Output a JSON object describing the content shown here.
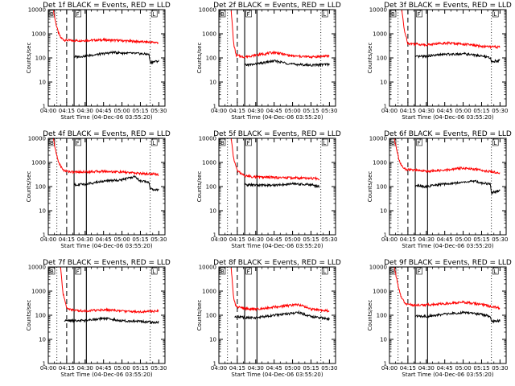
{
  "chart_data": [
    {
      "type": "line",
      "title": "Det 1f BLACK = Events, RED = LLD",
      "xlabel": "Start Time (04-Dec-06 03:55:20)",
      "ylabel": "Counts/sec",
      "yscale": "log",
      "ylim": [
        1,
        10000
      ],
      "xlim": [
        "04:00",
        "05:35"
      ],
      "xticks": [
        "04:00",
        "04:15",
        "04:30",
        "04:45",
        "05:00",
        "05:15",
        "05:30"
      ],
      "yticks": [
        "1",
        "10",
        "100",
        "1000",
        "10000"
      ],
      "markers": [
        {
          "label": "B",
          "time": "03:55"
        },
        {
          "label": "F",
          "time": "04:22"
        },
        {
          "label": "L",
          "time": "05:24"
        }
      ],
      "vlines": [
        {
          "time": "04:21",
          "style": "solid"
        },
        {
          "time": "04:31",
          "style": "solid"
        },
        {
          "time": "04:15",
          "style": "dashed"
        },
        {
          "time": "04:07",
          "style": "dotted"
        },
        {
          "time": "05:23",
          "style": "dotted"
        }
      ],
      "series": [
        {
          "name": "LLD",
          "color": "#ff0000",
          "x": [
            "04:04",
            "04:06",
            "04:08",
            "04:10",
            "04:13",
            "04:20",
            "04:30",
            "04:45",
            "05:00",
            "05:15",
            "05:30"
          ],
          "y": [
            10000,
            3000,
            1200,
            700,
            550,
            520,
            530,
            560,
            520,
            470,
            430
          ]
        },
        {
          "name": "Events",
          "color": "#000000",
          "x": [
            "04:21",
            "04:30",
            "04:45",
            "04:53",
            "05:00",
            "05:15",
            "05:22",
            "05:23",
            "05:30"
          ],
          "y": [
            110,
            120,
            150,
            170,
            160,
            150,
            140,
            65,
            75
          ]
        }
      ]
    },
    {
      "type": "line",
      "title": "Det 2f BLACK = Events, RED = LLD",
      "xlabel": "Start Time (04-Dec-06 03:55:20)",
      "ylabel": "Counts/sec",
      "yscale": "log",
      "ylim": [
        1,
        10000
      ],
      "xlim": [
        "04:00",
        "05:35"
      ],
      "xticks": [
        "04:00",
        "04:15",
        "04:30",
        "04:45",
        "05:00",
        "05:15",
        "05:30"
      ],
      "yticks": [
        "1",
        "10",
        "100",
        "1000",
        "10000"
      ],
      "markers": [
        {
          "label": "B",
          "time": "03:55"
        },
        {
          "label": "F",
          "time": "04:22"
        },
        {
          "label": "L",
          "time": "05:24"
        }
      ],
      "vlines": [
        {
          "time": "04:21",
          "style": "solid"
        },
        {
          "time": "04:31",
          "style": "solid"
        },
        {
          "time": "04:15",
          "style": "dashed"
        },
        {
          "time": "04:07",
          "style": "dotted"
        },
        {
          "time": "05:23",
          "style": "dotted"
        }
      ],
      "series": [
        {
          "name": "LLD",
          "color": "#ff0000",
          "x": [
            "04:10",
            "04:12",
            "04:14",
            "04:20",
            "04:30",
            "04:45",
            "05:00",
            "05:15",
            "05:30"
          ],
          "y": [
            10000,
            400,
            130,
            110,
            130,
            170,
            120,
            110,
            120
          ]
        },
        {
          "name": "Events",
          "color": "#000000",
          "x": [
            "04:21",
            "04:30",
            "04:45",
            "05:00",
            "05:15",
            "05:30"
          ],
          "y": [
            50,
            55,
            75,
            55,
            50,
            55
          ]
        }
      ]
    },
    {
      "type": "line",
      "title": "Det 3f BLACK = Events, RED = LLD",
      "xlabel": "Start Time (04-Dec-06 03:55:20)",
      "ylabel": "Counts/sec",
      "yscale": "log",
      "ylim": [
        1,
        10000
      ],
      "xlim": [
        "04:00",
        "05:35"
      ],
      "xticks": [
        "04:00",
        "04:15",
        "04:30",
        "04:45",
        "05:00",
        "05:15",
        "05:30"
      ],
      "yticks": [
        "1",
        "10",
        "100",
        "1000",
        "10000"
      ],
      "markers": [
        {
          "label": "B",
          "time": "03:55"
        },
        {
          "label": "F",
          "time": "04:22"
        },
        {
          "label": "L",
          "time": "05:24"
        }
      ],
      "vlines": [
        {
          "time": "04:21",
          "style": "solid"
        },
        {
          "time": "04:31",
          "style": "solid"
        },
        {
          "time": "04:15",
          "style": "dashed"
        },
        {
          "time": "04:07",
          "style": "dotted"
        },
        {
          "time": "05:23",
          "style": "dotted"
        }
      ],
      "series": [
        {
          "name": "LLD",
          "color": "#ff0000",
          "x": [
            "04:10",
            "04:12",
            "04:15",
            "04:21",
            "04:30",
            "04:45",
            "05:00",
            "05:15",
            "05:30"
          ],
          "y": [
            10000,
            1500,
            400,
            380,
            350,
            420,
            380,
            300,
            280
          ]
        },
        {
          "name": "Events",
          "color": "#000000",
          "x": [
            "04:21",
            "04:30",
            "04:45",
            "05:00",
            "05:15",
            "05:22",
            "05:23",
            "05:30"
          ],
          "y": [
            110,
            120,
            140,
            150,
            120,
            100,
            70,
            80
          ]
        }
      ]
    },
    {
      "type": "line",
      "title": "Det 4f BLACK = Events, RED = LLD",
      "xlabel": "Start Time (04-Dec-06 03:55:20)",
      "ylabel": "Counts/sec",
      "yscale": "log",
      "ylim": [
        1,
        10000
      ],
      "xlim": [
        "04:00",
        "05:35"
      ],
      "xticks": [
        "04:00",
        "04:15",
        "04:30",
        "04:45",
        "05:00",
        "05:15",
        "05:30"
      ],
      "yticks": [
        "1",
        "10",
        "100",
        "1000",
        "10000"
      ],
      "markers": [
        {
          "label": "B",
          "time": "03:55"
        },
        {
          "label": "F",
          "time": "04:22"
        },
        {
          "label": "L",
          "time": "05:24"
        }
      ],
      "vlines": [
        {
          "time": "04:21",
          "style": "solid"
        },
        {
          "time": "04:31",
          "style": "solid"
        },
        {
          "time": "04:15",
          "style": "dashed"
        },
        {
          "time": "04:07",
          "style": "dotted"
        },
        {
          "time": "05:23",
          "style": "dotted"
        }
      ],
      "series": [
        {
          "name": "LLD",
          "color": "#ff0000",
          "x": [
            "04:04",
            "04:06",
            "04:08",
            "04:10",
            "04:13",
            "04:20",
            "04:30",
            "04:45",
            "05:00",
            "05:15",
            "05:30"
          ],
          "y": [
            10000,
            3000,
            1200,
            700,
            450,
            400,
            410,
            430,
            400,
            350,
            320
          ]
        },
        {
          "name": "Events",
          "color": "#000000",
          "x": [
            "04:21",
            "04:30",
            "04:45",
            "05:00",
            "05:10",
            "05:15",
            "05:22",
            "05:23",
            "05:30"
          ],
          "y": [
            120,
            125,
            170,
            190,
            260,
            170,
            150,
            80,
            75
          ]
        }
      ]
    },
    {
      "type": "line",
      "title": "Det 5f BLACK = Events, RED = LLD",
      "xlabel": "Start Time (04-Dec-06 03:55:20)",
      "ylabel": "Counts/sec",
      "yscale": "log",
      "ylim": [
        1,
        10000
      ],
      "xlim": [
        "04:00",
        "05:35"
      ],
      "xticks": [
        "04:00",
        "04:15",
        "04:30",
        "04:45",
        "05:00",
        "05:15",
        "05:30"
      ],
      "yticks": [
        "1",
        "10",
        "100",
        "1000",
        "10000"
      ],
      "markers": [
        {
          "label": "B",
          "time": "03:55"
        },
        {
          "label": "F",
          "time": "04:22"
        },
        {
          "label": "L",
          "time": "05:24"
        }
      ],
      "vlines": [
        {
          "time": "04:21",
          "style": "solid"
        },
        {
          "time": "04:31",
          "style": "solid"
        },
        {
          "time": "04:15",
          "style": "dashed"
        },
        {
          "time": "04:07",
          "style": "dotted"
        },
        {
          "time": "05:23",
          "style": "dotted"
        }
      ],
      "series": [
        {
          "name": "LLD",
          "color": "#ff0000",
          "x": [
            "04:10",
            "04:12",
            "04:15",
            "04:21",
            "04:30",
            "04:45",
            "05:00",
            "05:15",
            "05:22"
          ],
          "y": [
            10000,
            1500,
            450,
            280,
            250,
            240,
            230,
            220,
            210
          ]
        },
        {
          "name": "Events",
          "color": "#000000",
          "x": [
            "04:21",
            "04:30",
            "04:45",
            "05:00",
            "05:15",
            "05:22"
          ],
          "y": [
            120,
            115,
            115,
            130,
            120,
            100
          ]
        }
      ]
    },
    {
      "type": "line",
      "title": "Det 6f BLACK = Events, RED = LLD",
      "xlabel": "Start Time (04-Dec-06 03:55:20)",
      "ylabel": "Counts/sec",
      "yscale": "log",
      "ylim": [
        1,
        10000
      ],
      "xlim": [
        "04:00",
        "05:35"
      ],
      "xticks": [
        "04:00",
        "04:15",
        "04:30",
        "04:45",
        "05:00",
        "05:15",
        "05:30"
      ],
      "yticks": [
        "1",
        "10",
        "100",
        "1000",
        "10000"
      ],
      "markers": [
        {
          "label": "B",
          "time": "03:55"
        },
        {
          "label": "F",
          "time": "04:22"
        },
        {
          "label": "L",
          "time": "05:24"
        }
      ],
      "vlines": [
        {
          "time": "04:21",
          "style": "solid"
        },
        {
          "time": "04:31",
          "style": "solid"
        },
        {
          "time": "04:15",
          "style": "dashed"
        },
        {
          "time": "04:07",
          "style": "dotted"
        },
        {
          "time": "05:23",
          "style": "dotted"
        }
      ],
      "series": [
        {
          "name": "LLD",
          "color": "#ff0000",
          "x": [
            "04:04",
            "04:06",
            "04:08",
            "04:10",
            "04:13",
            "04:20",
            "04:30",
            "04:45",
            "05:00",
            "05:15",
            "05:30"
          ],
          "y": [
            10000,
            3000,
            1200,
            700,
            520,
            480,
            430,
            470,
            600,
            480,
            360
          ]
        },
        {
          "name": "Events",
          "color": "#000000",
          "x": [
            "04:21",
            "04:30",
            "04:45",
            "05:00",
            "05:10",
            "05:15",
            "05:22",
            "05:23",
            "05:30"
          ],
          "y": [
            110,
            100,
            130,
            150,
            170,
            140,
            130,
            55,
            70
          ]
        }
      ]
    },
    {
      "type": "line",
      "title": "Det 7f BLACK = Events, RED = LLD",
      "xlabel": "Start Time (04-Dec-06 03:55:20)",
      "ylabel": "Counts/sec",
      "yscale": "log",
      "ylim": [
        1,
        10000
      ],
      "xlim": [
        "04:00",
        "05:35"
      ],
      "xticks": [
        "04:00",
        "04:15",
        "04:30",
        "04:45",
        "05:00",
        "05:15",
        "05:30"
      ],
      "yticks": [
        "1",
        "10",
        "100",
        "1000",
        "10000"
      ],
      "markers": [
        {
          "label": "B",
          "time": "03:55"
        },
        {
          "label": "F",
          "time": "04:22"
        },
        {
          "label": "L",
          "time": "05:24"
        }
      ],
      "vlines": [
        {
          "time": "04:21",
          "style": "solid"
        },
        {
          "time": "04:31",
          "style": "solid"
        },
        {
          "time": "04:15",
          "style": "dashed"
        },
        {
          "time": "04:07",
          "style": "dotted"
        },
        {
          "time": "05:23",
          "style": "dotted"
        }
      ],
      "series": [
        {
          "name": "LLD",
          "color": "#ff0000",
          "x": [
            "04:10",
            "04:12",
            "04:15",
            "04:21",
            "04:30",
            "04:45",
            "05:00",
            "05:15",
            "05:30"
          ],
          "y": [
            10000,
            800,
            200,
            160,
            150,
            170,
            150,
            140,
            150
          ]
        },
        {
          "name": "Events",
          "color": "#000000",
          "x": [
            "04:13",
            "04:21",
            "04:30",
            "04:45",
            "05:00",
            "05:15",
            "05:30"
          ],
          "y": [
            60,
            60,
            60,
            75,
            60,
            55,
            50
          ]
        }
      ]
    },
    {
      "type": "line",
      "title": "Det 8f BLACK = Events, RED = LLD",
      "xlabel": "Start Time (04-Dec-06 03:55:20)",
      "ylabel": "Counts/sec",
      "yscale": "log",
      "ylim": [
        1,
        10000
      ],
      "xlim": [
        "04:00",
        "05:35"
      ],
      "xticks": [
        "04:00",
        "04:15",
        "04:30",
        "04:45",
        "05:00",
        "05:15",
        "05:30"
      ],
      "yticks": [
        "1",
        "10",
        "100",
        "1000",
        "10000"
      ],
      "markers": [
        {
          "label": "B",
          "time": "03:55"
        },
        {
          "label": "F",
          "time": "04:22"
        },
        {
          "label": "L",
          "time": "05:24"
        }
      ],
      "vlines": [
        {
          "time": "04:21",
          "style": "solid"
        },
        {
          "time": "04:31",
          "style": "solid"
        },
        {
          "time": "04:15",
          "style": "dashed"
        },
        {
          "time": "04:07",
          "style": "dotted"
        },
        {
          "time": "05:23",
          "style": "dotted"
        }
      ],
      "series": [
        {
          "name": "LLD",
          "color": "#ff0000",
          "x": [
            "04:10",
            "04:12",
            "04:14",
            "04:21",
            "04:30",
            "04:45",
            "05:00",
            "05:05",
            "05:15",
            "05:30"
          ],
          "y": [
            10000,
            500,
            230,
            190,
            180,
            220,
            260,
            280,
            180,
            150
          ]
        },
        {
          "name": "Events",
          "color": "#000000",
          "x": [
            "04:13",
            "04:21",
            "04:30",
            "04:45",
            "05:00",
            "05:05",
            "05:15",
            "05:30"
          ],
          "y": [
            90,
            80,
            80,
            100,
            120,
            130,
            90,
            70
          ]
        }
      ]
    },
    {
      "type": "line",
      "title": "Det 9f BLACK = Events, RED = LLD",
      "xlabel": "Start Time (04-Dec-06 03:55:20)",
      "ylabel": "Counts/sec",
      "yscale": "log",
      "ylim": [
        1,
        10000
      ],
      "xlim": [
        "04:00",
        "05:35"
      ],
      "xticks": [
        "04:00",
        "04:15",
        "04:30",
        "04:45",
        "05:00",
        "05:15",
        "05:30"
      ],
      "yticks": [
        "1",
        "10",
        "100",
        "1000",
        "10000"
      ],
      "markers": [
        {
          "label": "B",
          "time": "03:55"
        },
        {
          "label": "F",
          "time": "04:22"
        },
        {
          "label": "L",
          "time": "05:24"
        }
      ],
      "vlines": [
        {
          "time": "04:21",
          "style": "solid"
        },
        {
          "time": "04:31",
          "style": "solid"
        },
        {
          "time": "04:15",
          "style": "dashed"
        },
        {
          "time": "04:07",
          "style": "dotted"
        },
        {
          "time": "05:23",
          "style": "dotted"
        }
      ],
      "series": [
        {
          "name": "LLD",
          "color": "#ff0000",
          "x": [
            "04:04",
            "04:06",
            "04:08",
            "04:10",
            "04:13",
            "04:20",
            "04:30",
            "04:45",
            "05:00",
            "05:15",
            "05:30"
          ],
          "y": [
            10000,
            3000,
            1000,
            500,
            300,
            260,
            270,
            300,
            350,
            280,
            200
          ]
        },
        {
          "name": "Events",
          "color": "#000000",
          "x": [
            "04:21",
            "04:30",
            "04:45",
            "05:00",
            "05:15",
            "05:22",
            "05:23",
            "05:30"
          ],
          "y": [
            95,
            90,
            110,
            130,
            110,
            90,
            55,
            60
          ]
        }
      ]
    }
  ]
}
